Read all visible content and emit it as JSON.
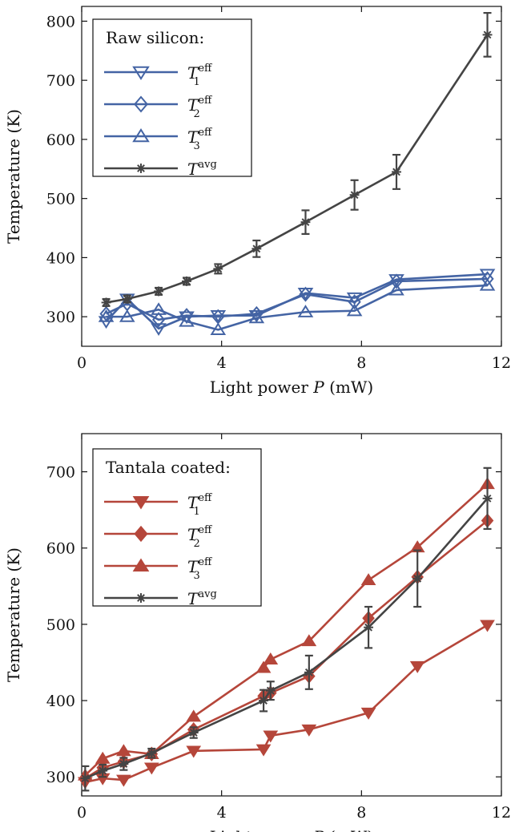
{
  "chart_data": [
    {
      "type": "line",
      "panel": "top",
      "xlabel_prefix": "Light power ",
      "xlabel_var": "P",
      "xlabel_unit": " (mW)",
      "ylabel": "Temperature (K)",
      "xlim": [
        0,
        12
      ],
      "ylim": [
        250,
        825
      ],
      "xticks": [
        0,
        4,
        8,
        12
      ],
      "yticks": [
        300,
        400,
        500,
        600,
        700,
        800
      ],
      "legend": {
        "title": "Raw silicon:",
        "position": "top-left"
      },
      "series": [
        {
          "name": "T_1^eff",
          "base": "T",
          "sub": "1",
          "sup": "eff",
          "marker": "triangle-down-open",
          "color": "#4464a4",
          "x": [
            0.7,
            1.3,
            2.2,
            3.0,
            3.9,
            5.0,
            6.4,
            7.8,
            9.0,
            11.6
          ],
          "y": [
            292,
            330,
            280,
            300,
            302,
            302,
            340,
            332,
            363,
            372
          ]
        },
        {
          "name": "T_2^eff",
          "base": "T",
          "sub": "2",
          "sup": "eff",
          "marker": "diamond-open",
          "color": "#4464a4",
          "x": [
            0.7,
            1.3,
            2.2,
            3.0,
            3.9,
            5.0,
            6.4,
            7.8,
            9.0,
            11.6
          ],
          "y": [
            305,
            322,
            295,
            302,
            300,
            305,
            338,
            325,
            360,
            364
          ]
        },
        {
          "name": "T_3^eff",
          "base": "T",
          "sub": "3",
          "sup": "eff",
          "marker": "triangle-up-open",
          "color": "#4464a4",
          "x": [
            0.7,
            1.3,
            2.2,
            3.0,
            3.9,
            5.0,
            6.4,
            7.8,
            9.0,
            11.6
          ],
          "y": [
            300,
            300,
            312,
            292,
            278,
            298,
            308,
            310,
            345,
            353
          ]
        },
        {
          "name": "T^avg",
          "base": "T",
          "sub": "",
          "sup": "avg",
          "marker": "asterisk",
          "color": "#444444",
          "x": [
            0.7,
            1.3,
            2.2,
            3.0,
            3.9,
            5.0,
            6.4,
            7.8,
            9.0,
            11.6
          ],
          "y": [
            324,
            330,
            343,
            360,
            381,
            415,
            460,
            506,
            545,
            777
          ],
          "err": [
            6,
            6,
            6,
            6,
            8,
            14,
            20,
            25,
            29,
            37
          ]
        }
      ]
    },
    {
      "type": "line",
      "panel": "bottom",
      "xlabel_prefix": "Light power ",
      "xlabel_var": "P",
      "xlabel_unit": " (mW)",
      "ylabel": "Temperature (K)",
      "xlim": [
        0,
        12
      ],
      "ylim": [
        275,
        750
      ],
      "xticks": [
        0,
        4,
        8,
        12
      ],
      "yticks": [
        300,
        400,
        500,
        600,
        700
      ],
      "legend": {
        "title": "Tantala coated:",
        "position": "top-left"
      },
      "series": [
        {
          "name": "T_1^eff",
          "base": "T",
          "sub": "1",
          "sup": "eff",
          "marker": "triangle-down-filled",
          "color": "#b5463a",
          "x": [
            0.1,
            0.6,
            1.2,
            2.0,
            3.2,
            5.2,
            5.4,
            6.5,
            8.2,
            9.6,
            11.6
          ],
          "y": [
            293,
            298,
            296,
            312,
            334,
            336,
            354,
            362,
            384,
            445,
            499
          ]
        },
        {
          "name": "T_2^eff",
          "base": "T",
          "sub": "2",
          "sup": "eff",
          "marker": "diamond-filled",
          "color": "#b5463a",
          "x": [
            0.1,
            0.6,
            1.2,
            2.0,
            3.2,
            5.2,
            5.4,
            6.5,
            8.2,
            9.6,
            11.6
          ],
          "y": [
            298,
            312,
            320,
            330,
            362,
            406,
            410,
            432,
            508,
            562,
            636
          ]
        },
        {
          "name": "T_3^eff",
          "base": "T",
          "sub": "3",
          "sup": "eff",
          "marker": "triangle-up-filled",
          "color": "#b5463a",
          "x": [
            0.1,
            0.6,
            1.2,
            2.0,
            3.2,
            5.2,
            5.4,
            6.5,
            8.2,
            9.6,
            11.6
          ],
          "y": [
            302,
            324,
            334,
            330,
            379,
            443,
            454,
            478,
            558,
            601,
            684
          ]
        },
        {
          "name": "T^avg",
          "base": "T",
          "sub": "",
          "sup": "avg",
          "marker": "asterisk",
          "color": "#444444",
          "x": [
            0.1,
            0.6,
            1.2,
            2.0,
            3.2,
            5.2,
            5.4,
            6.5,
            8.2,
            9.6,
            11.6
          ],
          "y": [
            298,
            308,
            317,
            331,
            358,
            400,
            413,
            437,
            496,
            560,
            665
          ],
          "err": [
            16,
            8,
            8,
            6,
            7,
            14,
            12,
            22,
            27,
            37,
            40
          ]
        }
      ]
    }
  ]
}
